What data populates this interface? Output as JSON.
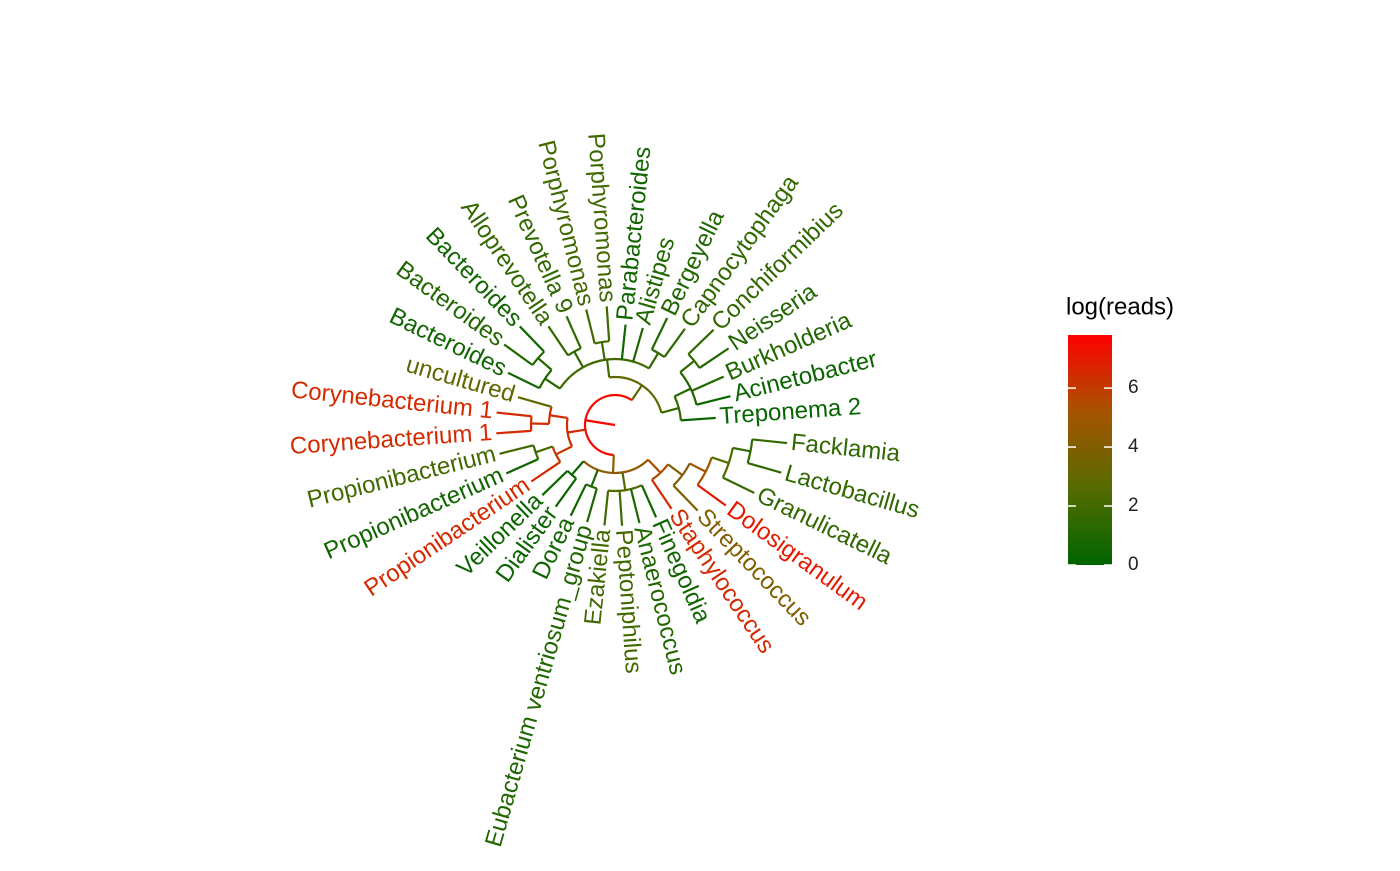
{
  "tree": {
    "value": 7.6,
    "children": [
      {
        "value": 4.5,
        "children": [
          {
            "value": 5.5,
            "children": [
              {
                "value": 4.0,
                "children": [
                  {
                    "value": 5.0,
                    "children": [
                      {
                        "value": 2.5,
                        "children": [
                          {
                            "value": 1.5,
                            "children": [
                              {
                                "label": "Facklamia",
                                "value": 1.5
                              },
                              {
                                "label": "Lactobacillus",
                                "value": 1.5
                              }
                            ]
                          },
                          {
                            "label": "Granulicatella",
                            "value": 1.5
                          }
                        ]
                      },
                      {
                        "label": "Dolosigranulum",
                        "value": 7.0
                      }
                    ]
                  },
                  {
                    "label": "Streptococcus",
                    "value": 4.0
                  }
                ]
              },
              {
                "label": "Staphylococcus",
                "value": 6.5
              }
            ]
          },
          {
            "value": 2.5,
            "children": [
              {
                "label": "Finegoldia",
                "value": 0.5
              },
              {
                "label": "Anaerococcus",
                "value": 1.0
              },
              {
                "label": "Peptoniphilus",
                "value": 2.0
              },
              {
                "label": "Ezakiella",
                "value": 2.0
              }
            ]
          },
          {
            "value": 1.0,
            "children": [
              {
                "label": "Eubacterium ventriosum_group",
                "value": 1.0
              },
              {
                "label": "Dorea",
                "value": 0.5
              }
            ]
          },
          {
            "value": 0.3,
            "children": [
              {
                "label": "Dialister",
                "value": 0.3
              },
              {
                "label": "Veillonella",
                "value": 0.3
              }
            ]
          }
        ]
      },
      {
        "value": 6.5,
        "children": [
          {
            "value": 6.0,
            "children": [
              {
                "label": "Propionibacterium",
                "value": 6.5
              },
              {
                "value": 2.0,
                "children": [
                  {
                    "label": "Propionibacterium",
                    "value": 0.5
                  },
                  {
                    "label": "Propionibacterium",
                    "value": 2.0
                  }
                ]
              }
            ]
          },
          {
            "value": 6.5,
            "children": [
              {
                "value": 6.5,
                "children": [
                  {
                    "label": "Corynebacterium 1",
                    "value": 6.5
                  },
                  {
                    "label": "Corynebacterium 1",
                    "value": 6.5
                  }
                ]
              },
              {
                "label": "uncultured",
                "value": 3.0
              }
            ]
          }
        ]
      },
      {
        "value": 3.0,
        "children": [
          {
            "value": 2.0,
            "children": [
              {
                "value": 1.0,
                "children": [
                  {
                    "label": "Bacteroides",
                    "value": 0.5
                  },
                  {
                    "value": 1.0,
                    "children": [
                      {
                        "label": "Bacteroides",
                        "value": 1.0
                      },
                      {
                        "label": "Bacteroides",
                        "value": 0.5
                      }
                    ]
                  }
                ]
              },
              {
                "value": 1.5,
                "children": [
                  {
                    "label": "Alloprevotella",
                    "value": 1.5
                  },
                  {
                    "label": "Prevotella 9",
                    "value": 1.5
                  }
                ]
              },
              {
                "value": 2.0,
                "children": [
                  {
                    "label": "Porphyromonas",
                    "value": 2.0
                  },
                  {
                    "label": "Porphyromonas",
                    "value": 2.0
                  }
                ]
              },
              {
                "label": "Parabacteroides",
                "value": 0.5
              },
              {
                "label": "Alistipes",
                "value": 1.0
              },
              {
                "value": 1.5,
                "children": [
                  {
                    "label": "Bergeyella",
                    "value": 1.0
                  },
                  {
                    "label": "Capnocytophaga",
                    "value": 1.5
                  }
                ]
              }
            ]
          },
          {
            "value": 1.5,
            "children": [
              {
                "value": 1.0,
                "children": [
                  {
                    "value": 1.5,
                    "children": [
                      {
                        "label": "Conchiformibius",
                        "value": 1.5
                      },
                      {
                        "label": "Neisseria",
                        "value": 1.0
                      }
                    ]
                  },
                  {
                    "label": "Burkholderia",
                    "value": 1.0
                  },
                  {
                    "label": "Acinetobacter",
                    "value": 0.3
                  }
                ]
              },
              {
                "label": "Treponema 2",
                "value": 0.2
              }
            ]
          }
        ]
      }
    ]
  },
  "legend": {
    "title": "log(reads)",
    "lim": [
      0,
      7.8
    ],
    "ticks": [
      0,
      2,
      4,
      6
    ],
    "colors": [
      "#006400",
      "#556b00",
      "#a65400",
      "#ff0000"
    ]
  }
}
